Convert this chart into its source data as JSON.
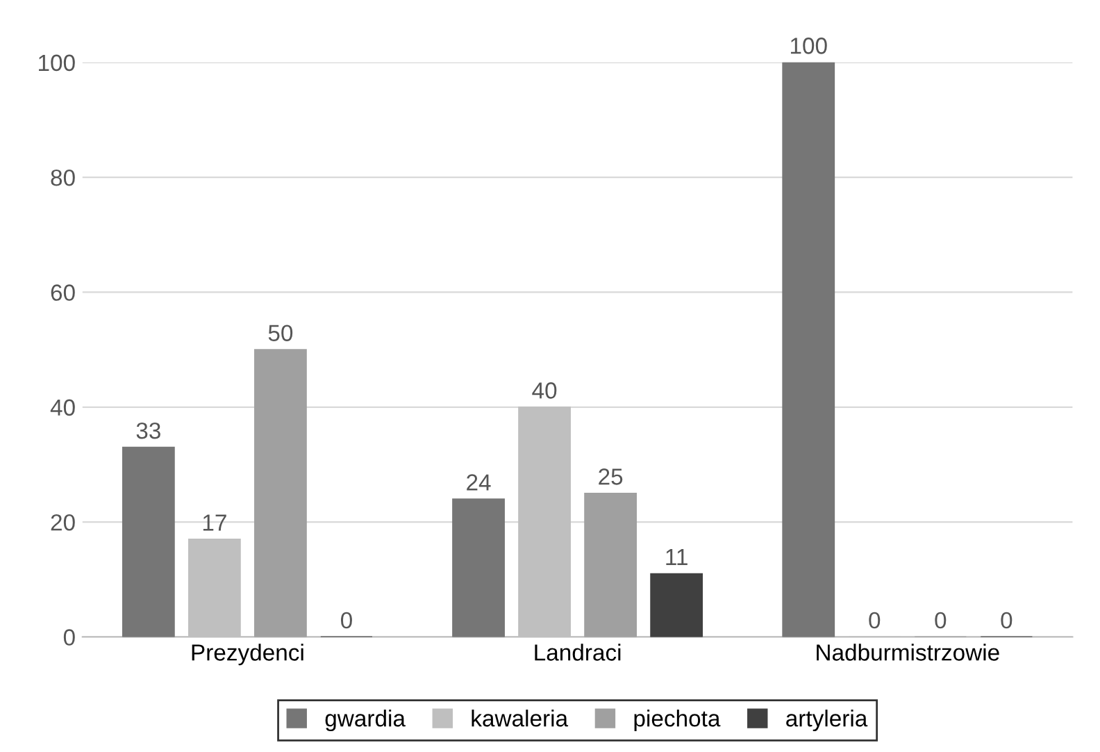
{
  "chart_data": {
    "type": "bar",
    "categories": [
      "Prezydenci",
      "Landraci",
      "Nadburmistrzowie"
    ],
    "series": [
      {
        "name": "gwardia",
        "color": "#767676",
        "values": [
          33,
          24,
          100
        ]
      },
      {
        "name": "kawaleria",
        "color": "#bfbfbf",
        "values": [
          17,
          40,
          0
        ]
      },
      {
        "name": "piechota",
        "color": "#a0a0a0",
        "values": [
          50,
          25,
          0
        ]
      },
      {
        "name": "artyleria",
        "color": "#404040",
        "values": [
          0,
          11,
          0
        ]
      }
    ],
    "ylim": [
      0,
      100
    ],
    "yticks": [
      0,
      20,
      40,
      60,
      80,
      100
    ],
    "grid": "y",
    "legend": "bottom",
    "data_labels": true
  }
}
